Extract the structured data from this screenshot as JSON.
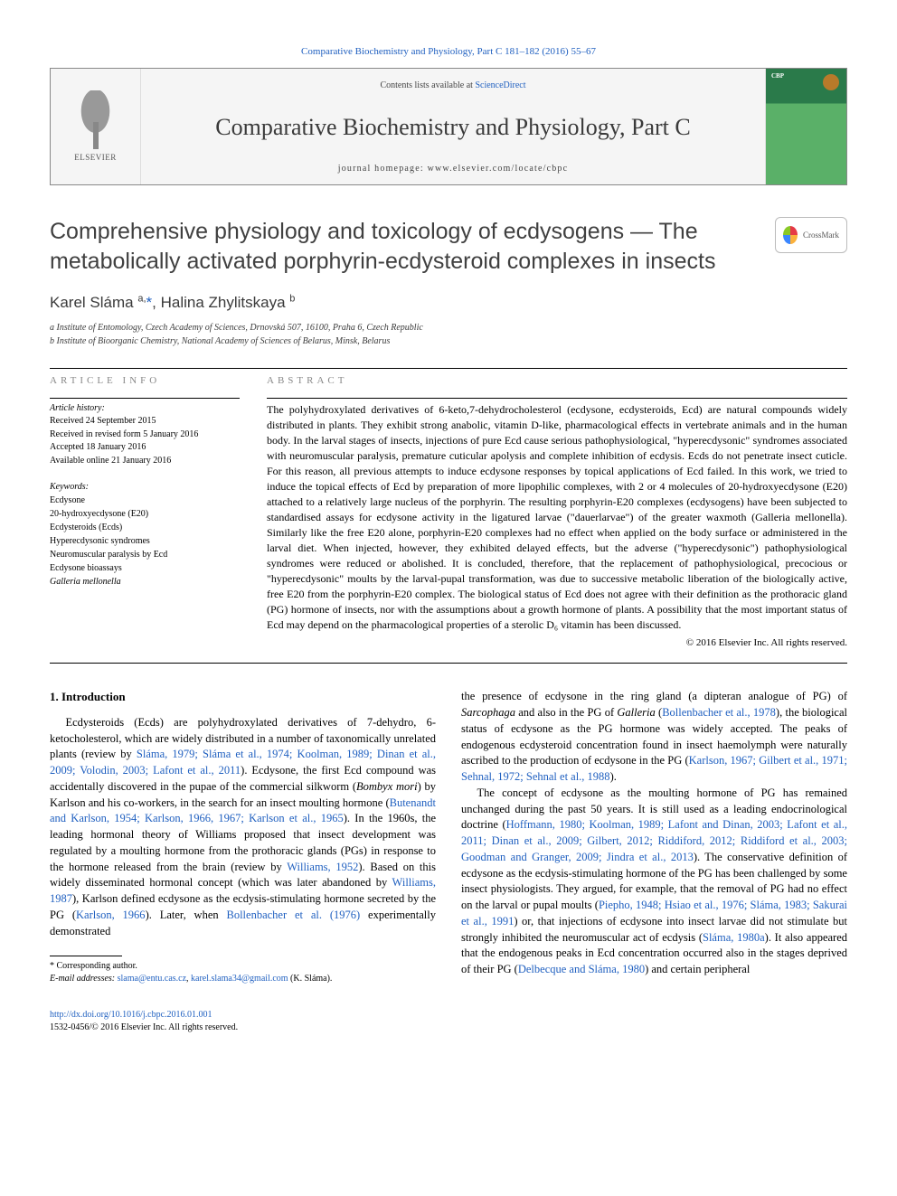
{
  "header": {
    "citation_link": "Comparative Biochemistry and Physiology, Part C 181–182 (2016) 55–67",
    "contents_text": "Contents lists available at ",
    "contents_link": "ScienceDirect",
    "journal_name": "Comparative Biochemistry and Physiology, Part C",
    "homepage_label": "journal homepage: ",
    "homepage_url": "www.elsevier.com/locate/cbpc",
    "publisher_logo_text": "ELSEVIER",
    "cover_label": "CBP"
  },
  "crossmark": {
    "label": "CrossMark"
  },
  "article": {
    "title": "Comprehensive physiology and toxicology of ecdysogens — The metabolically activated porphyrin-ecdysteroid complexes in insects",
    "authors_html": "Karel Sláma <sup>a,</sup><span class='asterisk'>*</span>, Halina Zhylitskaya <sup>b</sup>",
    "affiliations": [
      "a  Institute of Entomology, Czech Academy of Sciences, Drnovská 507, 16100, Praha 6, Czech Republic",
      "b  Institute of Bioorganic Chemistry, National Academy of Sciences of Belarus, Minsk, Belarus"
    ]
  },
  "info": {
    "section_head": "article info",
    "history_label": "Article history:",
    "history": [
      "Received 24 September 2015",
      "Received in revised form 5 January 2016",
      "Accepted 18 January 2016",
      "Available online 21 January 2016"
    ],
    "keywords_label": "Keywords:",
    "keywords": [
      {
        "text": "Ecdysone",
        "ital": false
      },
      {
        "text": "20-hydroxyecdysone (E20)",
        "ital": false
      },
      {
        "text": "Ecdysteroids (Ecds)",
        "ital": false
      },
      {
        "text": "Hyperecdysonic syndromes",
        "ital": false
      },
      {
        "text": "Neuromuscular paralysis by Ecd",
        "ital": false
      },
      {
        "text": "Ecdysone bioassays",
        "ital": false
      },
      {
        "text": "Galleria mellonella",
        "ital": true
      }
    ]
  },
  "abstract": {
    "section_head": "abstract",
    "text": "The polyhydroxylated derivatives of 6-keto,7-dehydrocholesterol (ecdysone, ecdysteroids, Ecd) are natural compounds widely distributed in plants. They exhibit strong anabolic, vitamin D-like, pharmacological effects in vertebrate animals and in the human body. In the larval stages of insects, injections of pure Ecd cause serious pathophysiological, \"hyperecdysonic\" syndromes associated with neuromuscular paralysis, premature cuticular apolysis and complete inhibition of ecdysis. Ecds do not penetrate insect cuticle. For this reason, all previous attempts to induce ecdysone responses by topical applications of Ecd failed. In this work, we tried to induce the topical effects of Ecd by preparation of more lipophilic complexes, with 2 or 4 molecules of 20-hydroxyecdysone (E20) attached to a relatively large nucleus of the porphyrin. The resulting porphyrin-E20 complexes (ecdysogens) have been subjected to standardised assays for ecdysone activity in the ligatured larvae (\"dauerlarvae\") of the greater waxmoth (Galleria mellonella). Similarly like the free E20 alone, porphyrin-E20 complexes had no effect when applied on the body surface or administered in the larval diet. When injected, however, they exhibited delayed effects, but the adverse (\"hyperecdysonic\") pathophysiological syndromes were reduced or abolished. It is concluded, therefore, that the replacement of pathophysiological, precocious or \"hyperecdysonic\" moults by the larval-pupal transformation, was due to successive metabolic liberation of the biologically active, free E20 from the porphyrin-E20 complex. The biological status of Ecd does not agree with their definition as the prothoracic gland (PG) hormone of insects, nor with the assumptions about a growth hormone of plants. A possibility that the most important status of Ecd may depend on the pharmacological properties of a sterolic D₆ vitamin has been discussed.",
    "copyright": "© 2016 Elsevier Inc. All rights reserved."
  },
  "body": {
    "heading": "1. Introduction",
    "para1_pre": "Ecdysteroids (Ecds) are polyhydroxylated derivatives of 7-dehydro, 6-ketocholesterol, which are widely distributed in a number of taxonomically unrelated plants (review by ",
    "para1_ref1": "Sláma, 1979; Sláma et al., 1974; Koolman, 1989; Dinan et al., 2009; Volodin, 2003; Lafont et al., 2011",
    "para1_mid1": "). Ecdysone, the first Ecd compound was accidentally discovered in the pupae of the commercial silkworm (",
    "para1_ital1": "Bombyx mori",
    "para1_mid2": ") by Karlson and his co-workers, in the search for an insect moulting hormone (",
    "para1_ref2": "Butenandt and Karlson, 1954; Karlson, 1966, 1967; Karlson et al., 1965",
    "para1_mid3": "). In the 1960s, the leading hormonal theory of Williams proposed that insect development was regulated by a moulting hormone from the prothoracic glands (PGs) in response to the hormone released from the brain (review by ",
    "para1_ref3": "Williams, 1952",
    "para1_mid4": "). Based on this widely disseminated hormonal concept (which was later abandoned by ",
    "para1_ref4": "Williams, 1987",
    "para1_mid5": "), Karlson defined ecdysone as the ecdysis-stimulating hormone secreted by the PG (",
    "para1_ref5": "Karlson, 1966",
    "para1_mid6": "). Later, when ",
    "para1_ref6": "Bollenbacher et al. (1976)",
    "para1_end": " experimentally demonstrated",
    "para2_pre": "the presence of ecdysone in the ring gland (a dipteran analogue of PG) of ",
    "para2_ital1": "Sarcophaga",
    "para2_mid1": " and also in the PG of ",
    "para2_ital2": "Galleria",
    "para2_mid2": " (",
    "para2_ref1": "Bollenbacher et al., 1978",
    "para2_mid3": "), the biological status of ecdysone as the PG hormone was widely accepted. The peaks of endogenous ecdysteroid concentration found in insect haemolymph were naturally ascribed to the production of ecdysone in the PG (",
    "para2_ref2": "Karlson, 1967; Gilbert et al., 1971; Sehnal, 1972; Sehnal et al., 1988",
    "para2_end": ").",
    "para3_pre": "The concept of ecdysone as the moulting hormone of PG has remained unchanged during the past 50 years. It is still used as a leading endocrinological doctrine (",
    "para3_ref1": "Hoffmann, 1980; Koolman, 1989; Lafont and Dinan, 2003; Lafont et al., 2011; Dinan et al., 2009; Gilbert, 2012; Riddiford, 2012; Riddiford et al., 2003; Goodman and Granger, 2009; Jindra et al., 2013",
    "para3_mid1": "). The conservative definition of ecdysone as the ecdysis-stimulating hormone of the PG has been challenged by some insect physiologists. They argued, for example, that the removal of PG had no effect on the larval or pupal moults (",
    "para3_ref2": "Piepho, 1948; Hsiao et al., 1976; Sláma, 1983; Sakurai et al., 1991",
    "para3_mid2": ") or, that injections of ecdysone into insect larvae did not stimulate but strongly inhibited the neuromuscular act of ecdysis (",
    "para3_ref3": "Sláma, 1980a",
    "para3_mid3": "). It also appeared that the endogenous peaks in Ecd concentration occurred also in the stages deprived of their PG (",
    "para3_ref4": "Delbecque and Sláma, 1980",
    "para3_end": ") and certain peripheral"
  },
  "footnote": {
    "corr_label": "* Corresponding author.",
    "email_label": "E-mail addresses: ",
    "email1": "slama@entu.cas.cz",
    "email_sep": ", ",
    "email2": "karel.slama34@gmail.com",
    "email_suffix": " (K. Sláma)."
  },
  "doi": {
    "url": "http://dx.doi.org/10.1016/j.cbpc.2016.01.001",
    "issn_line": "1532-0456/© 2016 Elsevier Inc. All rights reserved."
  },
  "colors": {
    "link": "#2060c0",
    "text": "#000000",
    "muted": "#888888",
    "heading": "#404040"
  }
}
